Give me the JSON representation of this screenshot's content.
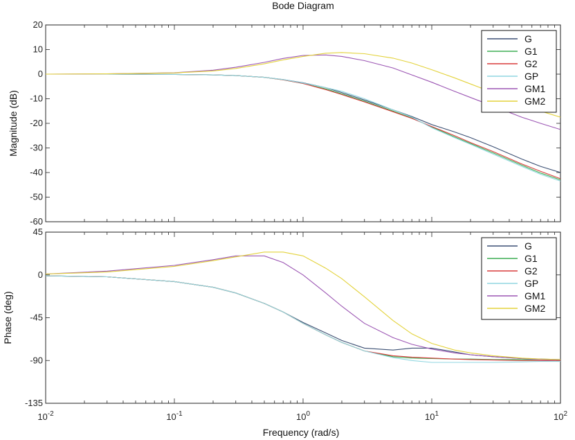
{
  "chart_data": {
    "type": "line",
    "title": "Bode Diagram",
    "xlabel": "Frequency  (rad/s)",
    "x_scale": "log",
    "xlim": [
      0.01,
      100
    ],
    "x_ticks": [
      {
        "value": 0.01,
        "base": "10",
        "exp": "-2"
      },
      {
        "value": 0.1,
        "base": "10",
        "exp": "-1"
      },
      {
        "value": 1,
        "base": "10",
        "exp": "0"
      },
      {
        "value": 10,
        "base": "10",
        "exp": "1"
      },
      {
        "value": 100,
        "base": "10",
        "exp": "2"
      }
    ],
    "grid": false,
    "legend_position": "top-right",
    "series_colors": {
      "G": "#3b4f73",
      "G1": "#3fae55",
      "G2": "#d83a3a",
      "GP": "#8fd6e0",
      "GM1": "#9b55b3",
      "GM2": "#e3d23a"
    },
    "panels": [
      {
        "ylabel": "Magnitude (dB)",
        "ylim": [
          -60,
          20
        ],
        "y_ticks": [
          "20",
          "10",
          "0",
          "-10",
          "-20",
          "-30",
          "-40",
          "-50",
          "-60"
        ],
        "x": [
          0.01,
          0.03,
          0.1,
          0.2,
          0.3,
          0.5,
          0.7,
          1,
          1.5,
          2,
          3,
          5,
          7,
          10,
          15,
          20,
          30,
          50,
          70,
          100
        ],
        "series": [
          {
            "name": "G",
            "values": [
              0,
              0,
              -0.1,
              -0.3,
              -0.6,
              -1.3,
              -2.2,
              -3.5,
              -5.5,
              -7.5,
              -10.5,
              -14.5,
              -17.2,
              -20.5,
              -23.5,
              -25.8,
              -29.5,
              -34.5,
              -37.5,
              -40
            ]
          },
          {
            "name": "G1",
            "values": [
              0,
              0,
              -0.1,
              -0.3,
              -0.6,
              -1.3,
              -2.3,
              -3.8,
              -6.0,
              -8.0,
              -11.0,
              -15.0,
              -17.8,
              -21.5,
              -25.5,
              -28.2,
              -32.0,
              -37.0,
              -40.2,
              -43
            ]
          },
          {
            "name": "G2",
            "values": [
              0,
              0,
              -0.1,
              -0.3,
              -0.6,
              -1.3,
              -2.3,
              -3.8,
              -6.3,
              -8.3,
              -11.3,
              -15.3,
              -18.0,
              -21.3,
              -25.0,
              -27.8,
              -31.5,
              -36.5,
              -39.5,
              -42.5
            ]
          },
          {
            "name": "GP",
            "values": [
              0,
              0,
              -0.1,
              -0.3,
              -0.6,
              -1.3,
              -2.2,
              -3.6,
              -5.5,
              -7.0,
              -10.0,
              -14.5,
              -17.5,
              -21.8,
              -25.8,
              -28.5,
              -32.5,
              -37.5,
              -40.7,
              -43.5
            ]
          },
          {
            "name": "GM1",
            "values": [
              0,
              0.1,
              0.6,
              1.6,
              2.8,
              4.8,
              6.4,
              7.6,
              7.8,
              7.2,
              5.5,
              2.5,
              -0.3,
              -3.3,
              -7.0,
              -9.5,
              -13.0,
              -17.5,
              -20.0,
              -22.5
            ]
          },
          {
            "name": "GM2",
            "values": [
              0,
              0.1,
              0.5,
              1.3,
              2.3,
              4.2,
              5.8,
              7.2,
              8.5,
              8.8,
              8.3,
              6.5,
              4.5,
              1.8,
              -1.5,
              -4.0,
              -7.5,
              -12.0,
              -15.0,
              -17.5
            ]
          }
        ]
      },
      {
        "ylabel": "Phase (deg)",
        "ylim": [
          -135,
          45
        ],
        "y_ticks": [
          "45",
          "0",
          "-45",
          "-90",
          "-135"
        ],
        "x": [
          0.01,
          0.03,
          0.1,
          0.2,
          0.3,
          0.5,
          0.7,
          1,
          1.5,
          2,
          3,
          5,
          7,
          10,
          15,
          20,
          30,
          50,
          70,
          100
        ],
        "series": [
          {
            "name": "G",
            "values": [
              -1,
              -2,
              -7,
              -13,
              -19,
              -30,
              -39,
              -50,
              -61,
              -69,
              -77,
              -79,
              -77,
              -77,
              -81,
              -84,
              -86,
              -88,
              -88.5,
              -89
            ]
          },
          {
            "name": "G1",
            "values": [
              -1,
              -2,
              -7,
              -13,
              -19,
              -30,
              -39,
              -51,
              -63,
              -71,
              -80,
              -86,
              -87.5,
              -88,
              -88.5,
              -88.5,
              -89,
              -89,
              -89,
              -90
            ]
          },
          {
            "name": "G2",
            "values": [
              -1,
              -2,
              -7,
              -13,
              -19,
              -30,
              -39,
              -51,
              -63,
              -71,
              -80,
              -85,
              -86.5,
              -87.5,
              -88.5,
              -89,
              -89.5,
              -90,
              -90,
              -90
            ]
          },
          {
            "name": "GP",
            "values": [
              -1,
              -2,
              -7,
              -13,
              -19,
              -30,
              -39,
              -51,
              -63,
              -71,
              -80,
              -87,
              -90,
              -92,
              -92,
              -92,
              -92,
              -91.5,
              -91,
              -91
            ]
          },
          {
            "name": "GM1",
            "values": [
              1,
              4,
              10,
              16,
              20,
              20,
              13,
              0,
              -19,
              -33,
              -51,
              -66,
              -73,
              -78,
              -82,
              -84,
              -86,
              -88,
              -89,
              -89.5
            ]
          },
          {
            "name": "GM2",
            "values": [
              1,
              3,
              9,
              15,
              19,
              24,
              24,
              20,
              7,
              -4,
              -23,
              -48,
              -62,
              -72,
              -79,
              -82,
              -85,
              -87.5,
              -88.5,
              -89
            ]
          }
        ]
      }
    ]
  }
}
